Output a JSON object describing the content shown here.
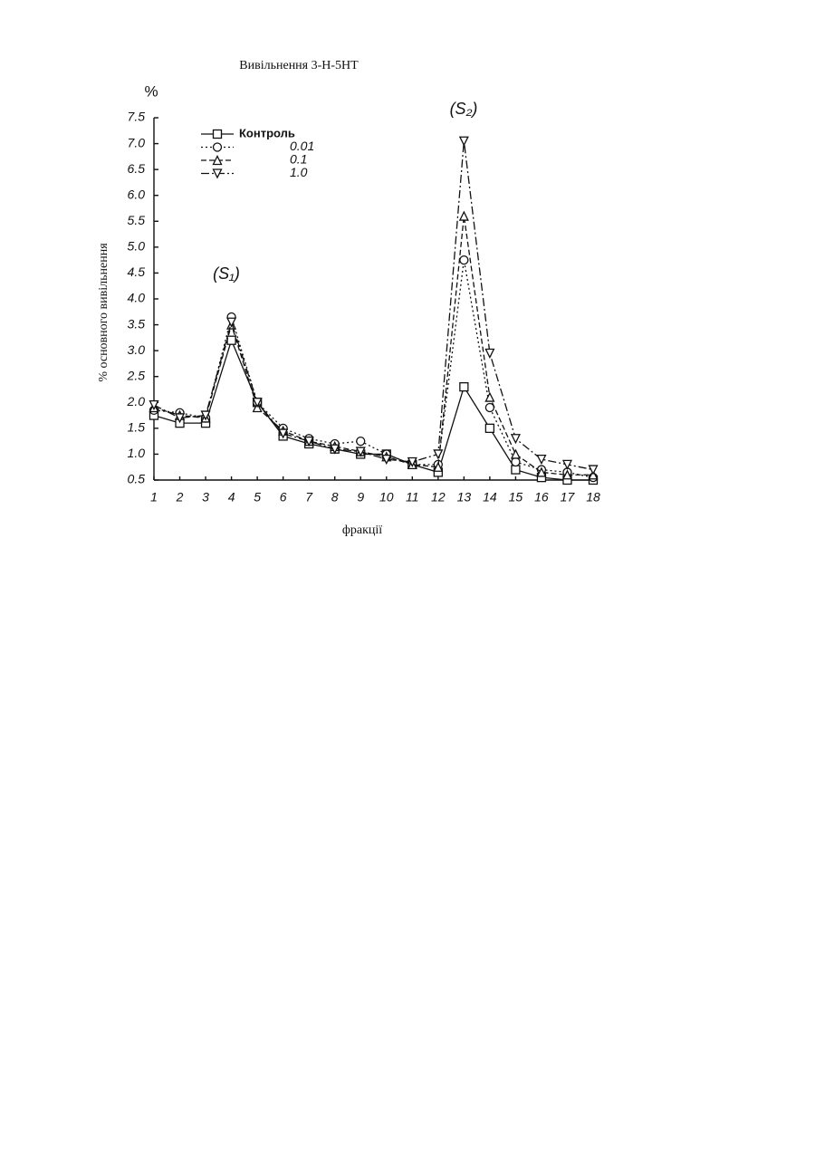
{
  "chart_data": {
    "type": "line",
    "title": "Вивільнення 3-Н-5НТ",
    "y_unit": "%",
    "y_label": "% основного вивільнення",
    "x_label": "фракції",
    "annotations": [
      "(S₁)",
      "(S₂)"
    ],
    "x": [
      1,
      2,
      3,
      4,
      5,
      6,
      7,
      8,
      9,
      10,
      11,
      12,
      13,
      14,
      15,
      16,
      17,
      18
    ],
    "xlim": [
      1,
      18
    ],
    "xticks": [
      1,
      2,
      3,
      4,
      5,
      6,
      7,
      8,
      9,
      10,
      11,
      12,
      13,
      14,
      15,
      16,
      17,
      18
    ],
    "ylim": [
      0.5,
      7.5
    ],
    "yticks": [
      0.5,
      {
        "value": 1,
        "label": "1.0"
      },
      1.5,
      {
        "value": 2,
        "label": "2.0"
      },
      2.5,
      {
        "value": 3,
        "label": "3.0"
      },
      3.5,
      {
        "value": 4,
        "label": "4.0"
      },
      4.5,
      {
        "value": 5,
        "label": "5.0"
      },
      5.5,
      {
        "value": 6,
        "label": "6.0"
      },
      6.5,
      {
        "value": 7,
        "label": "7.0"
      },
      7.5
    ],
    "legend": "top-left",
    "series": [
      {
        "name": "Контроль",
        "color": "#111111",
        "marker": "square",
        "dash": "none",
        "values": [
          1.75,
          1.6,
          1.6,
          3.2,
          2.0,
          1.35,
          1.2,
          1.1,
          1.0,
          1.0,
          0.8,
          0.65,
          2.3,
          1.5,
          0.7,
          0.55,
          0.5,
          0.5
        ]
      },
      {
        "name": "0.01",
        "color": "#111111",
        "marker": "circle",
        "dash": "2,3",
        "values": [
          1.85,
          1.8,
          1.7,
          3.65,
          2.0,
          1.5,
          1.3,
          1.2,
          1.25,
          1.0,
          0.8,
          0.8,
          4.75,
          1.9,
          0.85,
          0.7,
          0.65,
          0.55
        ]
      },
      {
        "name": "0.1",
        "color": "#111111",
        "marker": "triangle-up",
        "dash": "6,3",
        "values": [
          1.9,
          1.75,
          1.7,
          3.5,
          1.9,
          1.45,
          1.25,
          1.15,
          1.05,
          0.95,
          0.8,
          0.75,
          5.6,
          2.1,
          1.0,
          0.65,
          0.6,
          0.6
        ]
      },
      {
        "name": "1.0",
        "color": "#111111",
        "marker": "triangle-down",
        "dash": "9,3,2,3",
        "values": [
          1.95,
          1.7,
          1.75,
          3.55,
          2.0,
          1.4,
          1.25,
          1.1,
          1.05,
          0.9,
          0.85,
          1.0,
          7.05,
          2.95,
          1.3,
          0.9,
          0.8,
          0.7
        ]
      }
    ]
  }
}
